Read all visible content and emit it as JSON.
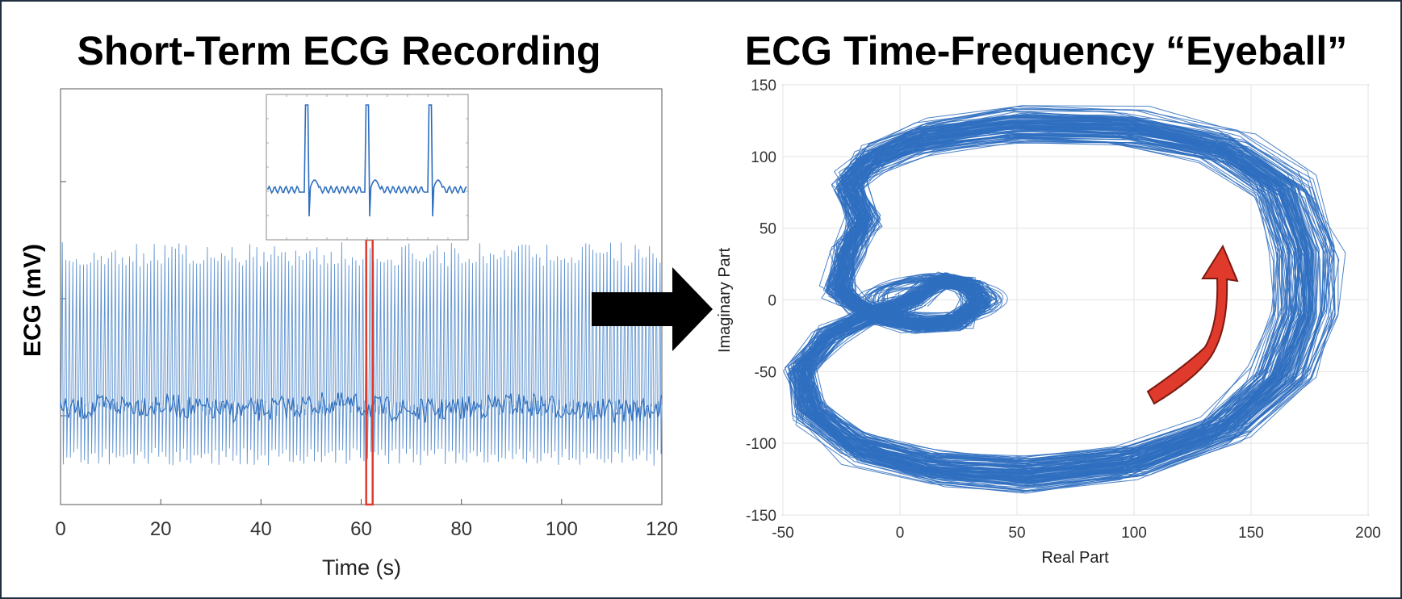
{
  "colors": {
    "signal": "#2f6fbf",
    "signal_light": "#5f93cf",
    "highlight": "#e03a2c",
    "arrow": "#000000",
    "frame": "#1f2f3f"
  },
  "chart_data": [
    {
      "type": "line",
      "title": "Short-Term ECG Recording",
      "xlabel": "Time (s)",
      "ylabel": "ECG (mV)",
      "xlim": [
        0,
        120
      ],
      "xticks": [
        "0",
        "20",
        "40",
        "60",
        "80",
        "100",
        "120"
      ],
      "yticks_labeled": false,
      "grid": false,
      "highlight_window": [
        61,
        62
      ],
      "inset": {
        "beats": 3,
        "description_shape": "zoomed ECG beats"
      }
    },
    {
      "type": "line",
      "title": "ECG Time-Frequency “Eyeball”",
      "xlabel": "Real Part",
      "ylabel": "Imaginary Part",
      "xlim": [
        -50,
        200
      ],
      "ylim": [
        -150,
        150
      ],
      "xticks": [
        "-50",
        "0",
        "50",
        "100",
        "150",
        "200"
      ],
      "yticks": [
        "150",
        "100",
        "50",
        "0",
        "-50",
        "-100",
        "-150"
      ],
      "grid": true,
      "direction_arrow": "counterclockwise"
    }
  ]
}
